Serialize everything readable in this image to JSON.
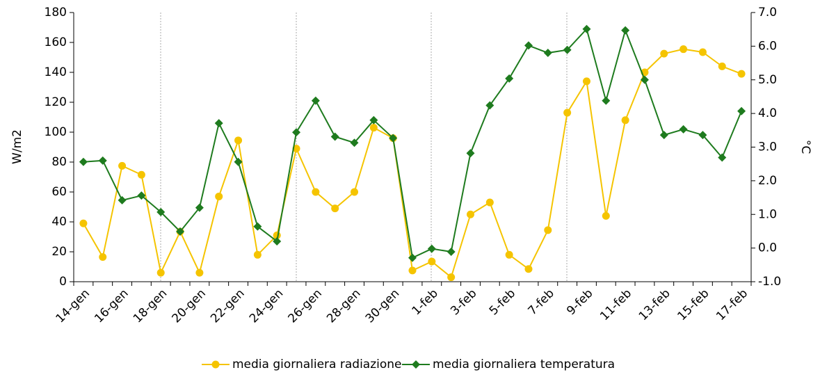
{
  "chart_data": {
    "type": "line",
    "categories": [
      "14-gen",
      null,
      "16-gen",
      null,
      "18-gen",
      null,
      "20-gen",
      null,
      "22-gen",
      null,
      "24-gen",
      null,
      "26-gen",
      null,
      "28-gen",
      null,
      "30-gen",
      null,
      "1-feb",
      null,
      "3-feb",
      null,
      "5-feb",
      null,
      "7-feb",
      null,
      "9-feb",
      null,
      "11-feb",
      null,
      "13-feb",
      null,
      "15-feb",
      null,
      "17-feb"
    ],
    "series": [
      {
        "name": "media giornaliera radiazione",
        "color": "#f5c400",
        "marker": "circle",
        "values": [
          39,
          16.5,
          77.5,
          71.5,
          6,
          33.5,
          6,
          57,
          94.5,
          18,
          31,
          89,
          60,
          49,
          60,
          103,
          96,
          7.5,
          13.5,
          3,
          45,
          53,
          18,
          8.5,
          34.5,
          113,
          134,
          44,
          108,
          140,
          152.5,
          155.5,
          153.5,
          144,
          139
        ]
      },
      {
        "name": "media giornaliera temperatura",
        "color": "#1e7b1e",
        "marker": "diamond",
        "axis": "y2",
        "values": [
          2.56,
          2.6,
          1.42,
          1.56,
          1.07,
          0.49,
          1.2,
          3.71,
          2.56,
          0.64,
          0.2,
          3.44,
          4.38,
          3.31,
          3.13,
          3.8,
          3.27,
          -0.29,
          -0.02,
          -0.11,
          2.82,
          4.24,
          5.04,
          6.02,
          5.8,
          5.89,
          6.51,
          4.38,
          6.47,
          5.0,
          3.36,
          3.53,
          3.36,
          2.69,
          4.07
        ]
      }
    ],
    "ylabel": "W/m2",
    "y2label": "°C",
    "ylim": [
      0,
      180
    ],
    "yticks": [
      0,
      20,
      40,
      60,
      80,
      100,
      120,
      140,
      160,
      180
    ],
    "y2lim": [
      -1,
      7
    ],
    "y2ticks": [
      {
        "value": -1,
        "label": "-1.0"
      },
      {
        "value": 0,
        "label": "0.0"
      },
      {
        "value": 1,
        "label": "1.0"
      },
      {
        "value": 2,
        "label": "2.0"
      },
      {
        "value": 3,
        "label": "3.0"
      },
      {
        "value": 4,
        "label": "4.0"
      },
      {
        "value": 5,
        "label": "5.0"
      },
      {
        "value": 6,
        "label": "6.0"
      },
      {
        "value": 7,
        "label": "7.0"
      }
    ],
    "grid": false,
    "legend": "bottom"
  }
}
